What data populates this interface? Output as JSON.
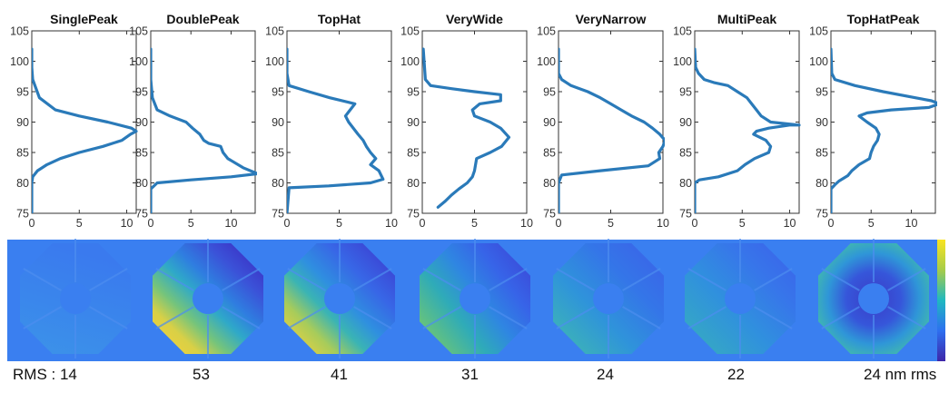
{
  "chart_data": [
    {
      "type": "line",
      "title": "SinglePeak",
      "ylim": [
        75,
        105
      ],
      "xlim": [
        0,
        11
      ],
      "yticks": [
        "75",
        "80",
        "85",
        "90",
        "95",
        "100",
        "105"
      ],
      "xticks": [
        "0",
        "5",
        "10"
      ],
      "x": [
        0,
        0,
        0.1,
        0.6,
        1.6,
        3.0,
        5.0,
        7.5,
        9.5,
        10.4,
        11.0,
        10.5,
        8.0,
        5.0,
        2.5,
        0.8,
        0.1,
        0,
        0
      ],
      "y": [
        75,
        80,
        81,
        82,
        83,
        84,
        85,
        86,
        87,
        88,
        88.5,
        89,
        90,
        91,
        92,
        94,
        97,
        99,
        102
      ]
    },
    {
      "type": "line",
      "title": "DoublePeak",
      "ylim": [
        75,
        105
      ],
      "xlim": [
        0,
        13
      ],
      "yticks": [
        "75",
        "80",
        "85",
        "90",
        "95",
        "100",
        "105"
      ],
      "xticks": [
        "0",
        "5",
        "10"
      ],
      "x": [
        0,
        0,
        0.8,
        5.0,
        10.0,
        13.3,
        11.5,
        9.6,
        9.0,
        8.7,
        7.2,
        6.6,
        6.1,
        5.2,
        4.4,
        2.4,
        0.8,
        0.2,
        0,
        0
      ],
      "y": [
        75,
        79,
        80,
        80.5,
        81,
        81.5,
        82.5,
        84,
        85,
        86,
        86.5,
        87,
        88,
        89,
        90,
        91,
        92,
        94,
        97,
        102
      ]
    },
    {
      "type": "line",
      "title": "TopHat",
      "ylim": [
        75,
        105
      ],
      "xlim": [
        0,
        10
      ],
      "yticks": [
        "75",
        "80",
        "85",
        "90",
        "95",
        "100",
        "105"
      ],
      "xticks": [
        "0",
        "5",
        "10"
      ],
      "x": [
        0,
        0.2,
        4.0,
        8.0,
        9.2,
        8.8,
        8.0,
        8.5,
        8.0,
        7.6,
        7.3,
        6.8,
        5.9,
        5.6,
        6.5,
        4.1,
        2.1,
        0.2,
        0,
        0
      ],
      "y": [
        75,
        79.2,
        79.5,
        80,
        80.6,
        82,
        83,
        84,
        85,
        86,
        87,
        88,
        90,
        91,
        93,
        94,
        95,
        96,
        98,
        102
      ]
    },
    {
      "type": "line",
      "title": "VeryWide",
      "ylim": [
        75,
        105
      ],
      "xlim": [
        0,
        10
      ],
      "yticks": [
        "75",
        "80",
        "85",
        "90",
        "95",
        "100",
        "105"
      ],
      "xticks": [
        "0",
        "5",
        "10"
      ],
      "x": [
        1.5,
        2.2,
        2.8,
        3.5,
        4.3,
        4.8,
        5.0,
        5.2,
        6.5,
        7.6,
        8.3,
        7.5,
        6.5,
        5.0,
        4.8,
        5.5,
        7.5,
        7.5,
        5.0,
        2.8,
        0.8,
        0.3,
        0.1
      ],
      "y": [
        76,
        77,
        78,
        79,
        80,
        81,
        82,
        84,
        85,
        86,
        87.5,
        89,
        90,
        91,
        92,
        93,
        93.5,
        94.5,
        95,
        95.5,
        96,
        97,
        102
      ]
    },
    {
      "type": "line",
      "title": "VeryNarrow",
      "ylim": [
        75,
        105
      ],
      "xlim": [
        0,
        10
      ],
      "yticks": [
        "75",
        "80",
        "85",
        "90",
        "95",
        "100",
        "105"
      ],
      "xticks": [
        "0",
        "5",
        "10"
      ],
      "x": [
        0,
        0,
        0.3,
        4.0,
        8.6,
        9.7,
        9.6,
        10.0,
        10.2,
        9.7,
        9.0,
        8.2,
        7.0,
        6.0,
        5.0,
        4.0,
        2.8,
        1.2,
        0.3,
        0,
        0
      ],
      "y": [
        75,
        80,
        81.3,
        82,
        82.8,
        84,
        85,
        86,
        87,
        88,
        89,
        90,
        91,
        92,
        93,
        94,
        95,
        96,
        97,
        98,
        102
      ]
    },
    {
      "type": "line",
      "title": "MultiPeak",
      "ylim": [
        75,
        105
      ],
      "xlim": [
        0,
        11
      ],
      "yticks": [
        "75",
        "80",
        "85",
        "90",
        "95",
        "100",
        "105"
      ],
      "xticks": [
        "0",
        "5",
        "10"
      ],
      "x": [
        0,
        0,
        0.5,
        2.5,
        4.5,
        5.3,
        6.3,
        7.8,
        8.0,
        7.5,
        6.2,
        6.5,
        7.8,
        10.0,
        11.0,
        8.0,
        7.0,
        6.5,
        6.0,
        5.5,
        4.5,
        3.5,
        2.0,
        1.0,
        0.4,
        0.1,
        0
      ],
      "y": [
        75,
        80,
        80.5,
        81,
        82,
        83,
        84,
        85,
        86,
        87,
        88,
        88.5,
        89,
        89.5,
        89.5,
        90,
        91,
        92,
        93,
        94,
        95,
        96,
        96.5,
        97,
        98,
        99,
        102
      ]
    },
    {
      "type": "line",
      "title": "TopHatPeak",
      "ylim": [
        75,
        105
      ],
      "xlim": [
        0,
        13
      ],
      "yticks": [
        "75",
        "80",
        "85",
        "90",
        "95",
        "100",
        "105"
      ],
      "xticks": [
        "0",
        "5",
        "10"
      ],
      "x": [
        0,
        0,
        0.5,
        1.0,
        2.1,
        2.6,
        3.5,
        4.8,
        5.0,
        5.3,
        5.8,
        6.0,
        5.6,
        4.5,
        3.5,
        4.5,
        7.5,
        12.2,
        13.5,
        12.5,
        10.5,
        6.5,
        3.0,
        0.5,
        0.1,
        0
      ],
      "y": [
        75,
        79,
        79.7,
        80.3,
        81.2,
        82,
        83,
        84,
        85,
        86,
        87,
        88,
        89,
        90,
        91,
        91.5,
        92,
        92.4,
        93,
        93.5,
        94,
        95,
        96,
        97,
        98,
        102
      ]
    }
  ],
  "rms_labels": [
    "RMS : 14",
    "53",
    "41",
    "31",
    "24",
    "22",
    "24 nm rms"
  ],
  "colors": {
    "line": "#2a7ab9",
    "map_background": "#3a7ff0"
  }
}
